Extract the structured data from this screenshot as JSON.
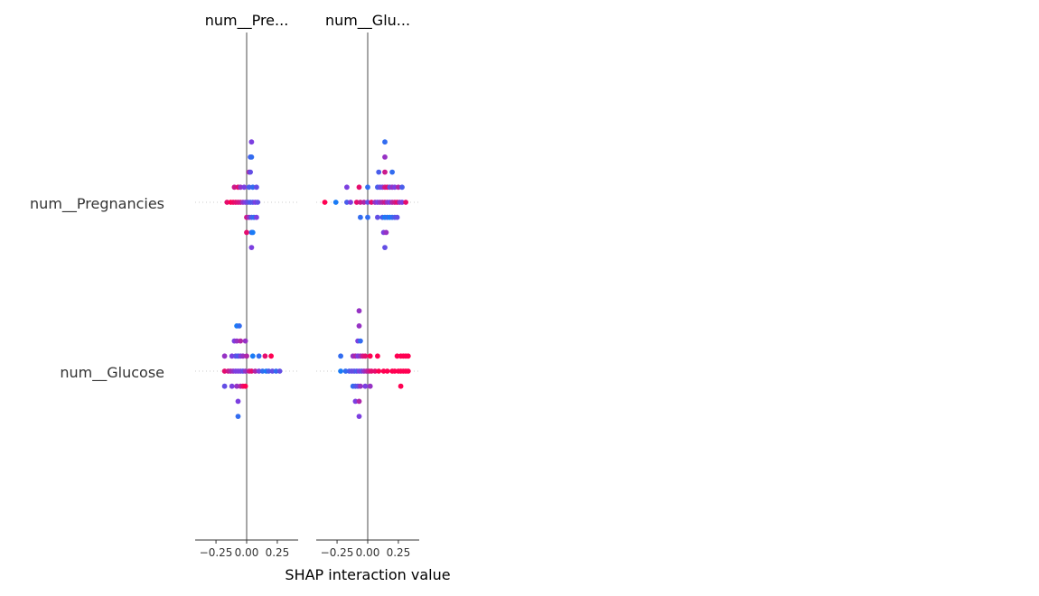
{
  "chart_data": {
    "type": "scatter",
    "xlabel": "SHAP interaction value",
    "panel_titles": [
      "num__Pre...",
      "num__Glu..."
    ],
    "row_labels": [
      "num__Pregnancies",
      "num__Glucose"
    ],
    "xlim": [
      -0.42,
      0.42
    ],
    "xticks": [
      -0.25,
      0,
      0.25
    ],
    "xtick_labels": [
      "−0.25",
      "0.00",
      "0.25"
    ],
    "color_low": "#008afb",
    "color_mid": "#7c3fe0",
    "color_high": "#ff0052",
    "panels": [
      {
        "title": "num__Pre...",
        "rows": [
          {
            "feature": "num__Pregnancies",
            "points": [
              [
                0.04,
                -4,
                0.5
              ],
              [
                0.03,
                -3,
                0.3
              ],
              [
                0.04,
                -3,
                0.2
              ],
              [
                0.02,
                -2,
                0.7
              ],
              [
                0.03,
                -2,
                0.4
              ],
              [
                -0.1,
                -1,
                0.8
              ],
              [
                -0.07,
                -1,
                0.9
              ],
              [
                -0.05,
                -1,
                0.6
              ],
              [
                -0.02,
                -1,
                0.5
              ],
              [
                0.02,
                -1,
                0.3
              ],
              [
                0.05,
                -1,
                0.2
              ],
              [
                0.08,
                -1,
                0.4
              ],
              [
                -0.16,
                0,
                0.9
              ],
              [
                -0.13,
                0,
                1.0
              ],
              [
                -0.11,
                0,
                0.95
              ],
              [
                -0.09,
                0,
                0.9
              ],
              [
                -0.07,
                0,
                0.85
              ],
              [
                -0.05,
                0,
                0.8
              ],
              [
                -0.03,
                0,
                0.6
              ],
              [
                -0.01,
                0,
                0.5
              ],
              [
                0.01,
                0,
                0.4
              ],
              [
                0.03,
                0,
                0.3
              ],
              [
                0.05,
                0,
                0.35
              ],
              [
                0.07,
                0,
                0.5
              ],
              [
                0.09,
                0,
                0.4
              ],
              [
                0.0,
                1,
                0.8
              ],
              [
                0.02,
                1,
                0.6
              ],
              [
                0.04,
                1,
                0.3
              ],
              [
                0.06,
                1,
                0.2
              ],
              [
                0.08,
                1,
                0.5
              ],
              [
                0.0,
                2,
                0.9
              ],
              [
                0.04,
                2,
                0.2
              ],
              [
                0.05,
                2,
                0.1
              ],
              [
                0.04,
                3,
                0.5
              ]
            ]
          },
          {
            "feature": "num__Glucose",
            "points": [
              [
                -0.08,
                -3,
                0.1
              ],
              [
                -0.06,
                -3,
                0.2
              ],
              [
                -0.1,
                -2,
                0.5
              ],
              [
                -0.08,
                -2,
                0.6
              ],
              [
                -0.05,
                -2,
                0.7
              ],
              [
                -0.01,
                -2,
                0.6
              ],
              [
                -0.18,
                -1,
                0.6
              ],
              [
                -0.12,
                -1,
                0.5
              ],
              [
                -0.09,
                -1,
                0.4
              ],
              [
                -0.07,
                -1,
                0.3
              ],
              [
                -0.05,
                -1,
                0.5
              ],
              [
                -0.03,
                -1,
                0.6
              ],
              [
                0.0,
                -1,
                0.7
              ],
              [
                0.05,
                -1,
                0.1
              ],
              [
                0.1,
                -1,
                0.2
              ],
              [
                0.15,
                -1,
                0.9
              ],
              [
                0.2,
                -1,
                1.0
              ],
              [
                -0.18,
                0,
                0.9
              ],
              [
                -0.15,
                0,
                0.8
              ],
              [
                -0.13,
                0,
                0.7
              ],
              [
                -0.11,
                0,
                0.6
              ],
              [
                -0.09,
                0,
                0.5
              ],
              [
                -0.07,
                0,
                0.5
              ],
              [
                -0.05,
                0,
                0.5
              ],
              [
                -0.03,
                0,
                0.4
              ],
              [
                -0.01,
                0,
                0.6
              ],
              [
                0.02,
                0,
                0.8
              ],
              [
                0.04,
                0,
                0.9
              ],
              [
                0.07,
                0,
                0.7
              ],
              [
                0.1,
                0,
                0.5
              ],
              [
                0.13,
                0,
                0.2
              ],
              [
                0.16,
                0,
                0.1
              ],
              [
                0.18,
                0,
                0.3
              ],
              [
                0.21,
                0,
                0.4
              ],
              [
                0.24,
                0,
                0.2
              ],
              [
                0.27,
                0,
                0.4
              ],
              [
                -0.18,
                1,
                0.4
              ],
              [
                -0.12,
                1,
                0.5
              ],
              [
                -0.08,
                1,
                0.6
              ],
              [
                -0.05,
                1,
                0.7
              ],
              [
                -0.03,
                1,
                0.9
              ],
              [
                -0.01,
                1,
                1.0
              ],
              [
                -0.07,
                2,
                0.5
              ],
              [
                -0.07,
                3,
                0.2
              ]
            ]
          }
        ]
      },
      {
        "title": "num__Glu...",
        "rows": [
          {
            "feature": "num__Pregnancies",
            "points": [
              [
                0.14,
                -4,
                0.2
              ],
              [
                0.14,
                -3,
                0.6
              ],
              [
                0.09,
                -2,
                0.3
              ],
              [
                0.14,
                -2,
                0.8
              ],
              [
                0.2,
                -2,
                0.2
              ],
              [
                -0.17,
                -1,
                0.5
              ],
              [
                -0.07,
                -1,
                0.9
              ],
              [
                0.0,
                -1,
                0.2
              ],
              [
                0.08,
                -1,
                0.3
              ],
              [
                0.1,
                -1,
                0.4
              ],
              [
                0.12,
                -1,
                0.5
              ],
              [
                0.14,
                -1,
                0.8
              ],
              [
                0.16,
                -1,
                0.9
              ],
              [
                0.18,
                -1,
                0.4
              ],
              [
                0.2,
                -1,
                0.6
              ],
              [
                0.22,
                -1,
                0.5
              ],
              [
                0.25,
                -1,
                0.7
              ],
              [
                0.28,
                -1,
                0.3
              ],
              [
                -0.35,
                0,
                1.0
              ],
              [
                -0.26,
                0,
                0.1
              ],
              [
                -0.17,
                0,
                0.3
              ],
              [
                -0.14,
                0,
                0.5
              ],
              [
                -0.09,
                0,
                0.9
              ],
              [
                -0.06,
                0,
                0.8
              ],
              [
                -0.03,
                0,
                0.7
              ],
              [
                0.0,
                0,
                0.4
              ],
              [
                0.03,
                0,
                0.9
              ],
              [
                0.06,
                0,
                0.6
              ],
              [
                0.08,
                0,
                0.5
              ],
              [
                0.1,
                0,
                0.6
              ],
              [
                0.12,
                0,
                0.7
              ],
              [
                0.14,
                0,
                0.8
              ],
              [
                0.16,
                0,
                0.6
              ],
              [
                0.18,
                0,
                0.5
              ],
              [
                0.2,
                0,
                0.7
              ],
              [
                0.22,
                0,
                0.8
              ],
              [
                0.24,
                0,
                0.9
              ],
              [
                0.26,
                0,
                0.6
              ],
              [
                0.28,
                0,
                0.5
              ],
              [
                0.31,
                0,
                0.9
              ],
              [
                -0.06,
                1,
                0.2
              ],
              [
                0.0,
                1,
                0.2
              ],
              [
                0.08,
                1,
                0.4
              ],
              [
                0.12,
                1,
                0.3
              ],
              [
                0.14,
                1,
                0.1
              ],
              [
                0.16,
                1,
                0.2
              ],
              [
                0.18,
                1,
                0.1
              ],
              [
                0.2,
                1,
                0.2
              ],
              [
                0.22,
                1,
                0.3
              ],
              [
                0.24,
                1,
                0.4
              ],
              [
                0.13,
                2,
                0.5
              ],
              [
                0.15,
                2,
                0.6
              ],
              [
                0.14,
                3,
                0.4
              ]
            ]
          },
          {
            "feature": "num__Glucose",
            "points": [
              [
                -0.07,
                -4,
                0.6
              ],
              [
                -0.07,
                -3,
                0.6
              ],
              [
                -0.08,
                -2,
                0.5
              ],
              [
                -0.06,
                -2,
                0.2
              ],
              [
                -0.22,
                -1,
                0.2
              ],
              [
                -0.12,
                -1,
                0.6
              ],
              [
                -0.1,
                -1,
                0.7
              ],
              [
                -0.08,
                -1,
                0.5
              ],
              [
                -0.06,
                -1,
                0.6
              ],
              [
                -0.04,
                -1,
                0.8
              ],
              [
                -0.02,
                -1,
                0.9
              ],
              [
                0.02,
                -1,
                1.0
              ],
              [
                0.08,
                -1,
                1.0
              ],
              [
                0.24,
                -1,
                1.0
              ],
              [
                0.27,
                -1,
                1.0
              ],
              [
                0.29,
                -1,
                1.0
              ],
              [
                0.31,
                -1,
                1.0
              ],
              [
                0.33,
                -1,
                1.0
              ],
              [
                -0.22,
                0,
                0.1
              ],
              [
                -0.18,
                0,
                0.2
              ],
              [
                -0.15,
                0,
                0.3
              ],
              [
                -0.13,
                0,
                0.4
              ],
              [
                -0.11,
                0,
                0.4
              ],
              [
                -0.09,
                0,
                0.3
              ],
              [
                -0.07,
                0,
                0.5
              ],
              [
                -0.05,
                0,
                0.4
              ],
              [
                -0.03,
                0,
                0.6
              ],
              [
                -0.01,
                0,
                0.7
              ],
              [
                0.01,
                0,
                0.8
              ],
              [
                0.03,
                0,
                0.9
              ],
              [
                0.06,
                0,
                0.9
              ],
              [
                0.09,
                0,
                1.0
              ],
              [
                0.13,
                0,
                1.0
              ],
              [
                0.16,
                0,
                1.0
              ],
              [
                0.2,
                0,
                1.0
              ],
              [
                0.22,
                0,
                1.0
              ],
              [
                0.25,
                0,
                1.0
              ],
              [
                0.27,
                0,
                1.0
              ],
              [
                0.29,
                0,
                1.0
              ],
              [
                0.31,
                0,
                1.0
              ],
              [
                0.33,
                0,
                1.0
              ],
              [
                -0.12,
                1,
                0.2
              ],
              [
                -0.1,
                1,
                0.3
              ],
              [
                -0.08,
                1,
                0.4
              ],
              [
                -0.06,
                1,
                0.6
              ],
              [
                -0.02,
                1,
                0.5
              ],
              [
                0.02,
                1,
                0.6
              ],
              [
                0.27,
                1,
                1.0
              ],
              [
                -0.1,
                2,
                0.5
              ],
              [
                -0.07,
                2,
                0.7
              ],
              [
                -0.07,
                3,
                0.5
              ]
            ]
          }
        ]
      }
    ]
  }
}
